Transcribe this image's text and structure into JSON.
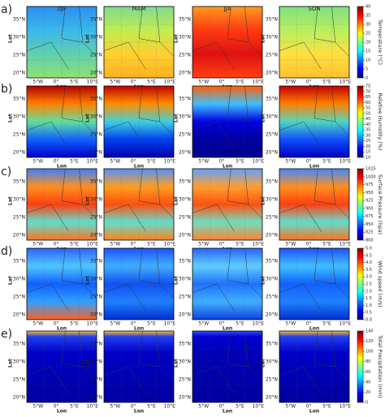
{
  "row_labels": [
    "a)",
    "b)",
    "c)",
    "d)",
    "e)"
  ],
  "columns": [
    "DJF",
    "MAM",
    "JJA",
    "SON"
  ],
  "lat_label": "Lat",
  "lon_label": "Lon",
  "lat_ticks": [
    "35°N",
    "30°N",
    "25°N",
    "20°N"
  ],
  "lon_ticks": [
    "5°W",
    "0°",
    "5°E",
    "10°E"
  ],
  "colorbars": [
    {
      "label": "Temperature (°C)",
      "ticks": [
        "40",
        "35",
        "30",
        "25",
        "20",
        "15",
        "10",
        "5",
        "0"
      ]
    },
    {
      "label": "Relative Humidity (%)",
      "ticks": [
        "75",
        "70",
        "65",
        "60",
        "55",
        "50",
        "45",
        "40",
        "35",
        "30",
        "25",
        "20",
        "15",
        "10"
      ]
    },
    {
      "label": "Surface Pressure (hpa)",
      "ticks": [
        "1025",
        "1000",
        "975",
        "950",
        "925",
        "900",
        "875",
        "850",
        "825",
        "800"
      ]
    },
    {
      "label": "Wind speed (m/s)",
      "ticks": [
        "5.0",
        "4.5",
        "4.0",
        "3.5",
        "3.0",
        "2.5",
        "2.0",
        "1.5",
        "1.0",
        "0.5",
        "0.0"
      ]
    },
    {
      "label": "Total Precipitation (mm)",
      "ticks": [
        "140",
        "120",
        "100",
        "80",
        "60",
        "40",
        "20",
        "0"
      ]
    }
  ]
}
